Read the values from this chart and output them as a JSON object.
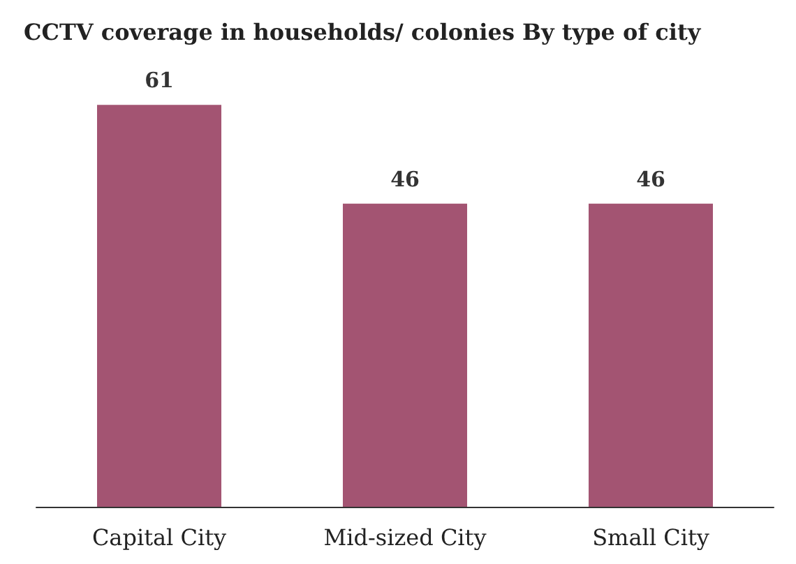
{
  "chart_data": {
    "type": "bar",
    "title": "CCTV coverage in households/ colonies By type of city",
    "categories": [
      "Capital City",
      "Mid-sized City",
      "Small City"
    ],
    "values": [
      61,
      46,
      46
    ],
    "color": "#a35472",
    "data_labels": true
  }
}
